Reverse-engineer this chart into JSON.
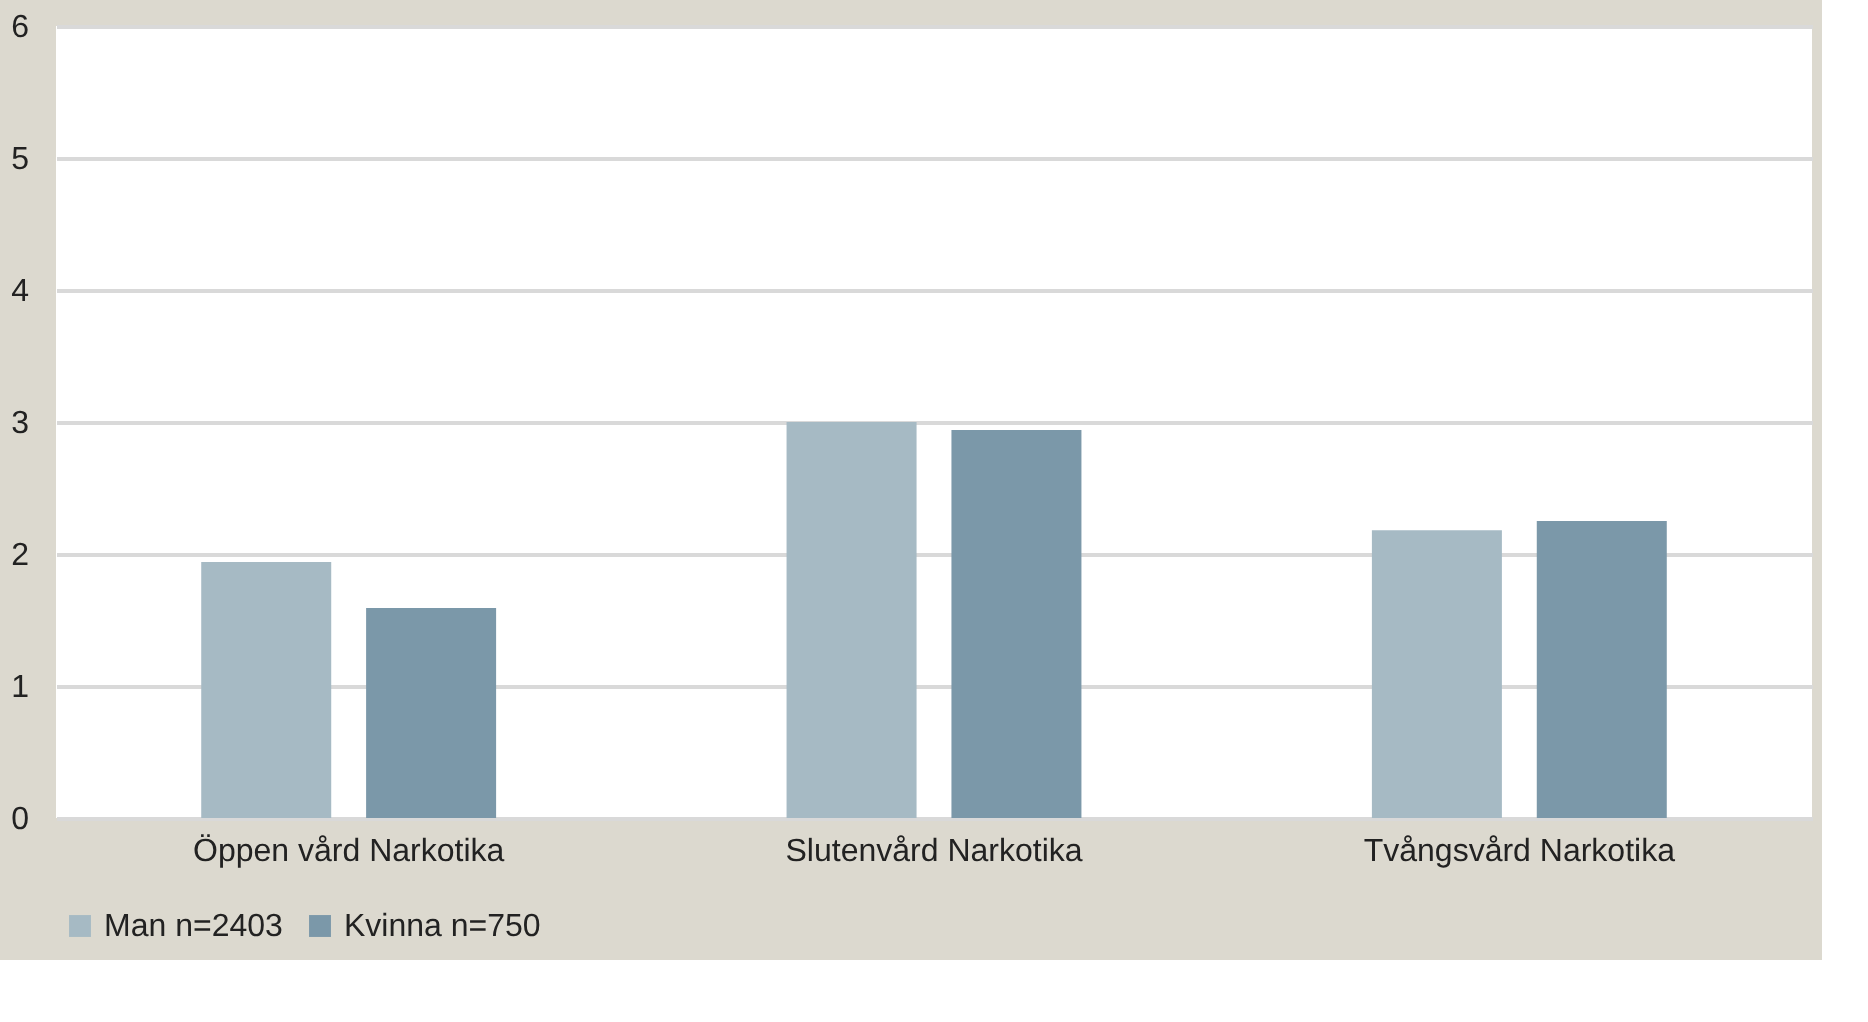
{
  "chart_data": {
    "type": "bar",
    "categories": [
      "Öppen vård Narkotika",
      "Slutenvård Narkotika",
      "Tvångsvård Narkotika"
    ],
    "series": [
      {
        "name": "Man n=2403",
        "color": "#a6bac4",
        "values": [
          1.94,
          3.0,
          2.18
        ]
      },
      {
        "name": "Kvinna n=750",
        "color": "#7b98a9",
        "values": [
          1.59,
          2.94,
          2.25
        ]
      }
    ],
    "ylim": [
      0,
      6
    ],
    "yticks": [
      0,
      1,
      2,
      3,
      4,
      5,
      6
    ],
    "grid": "y",
    "legend": "bottom"
  }
}
